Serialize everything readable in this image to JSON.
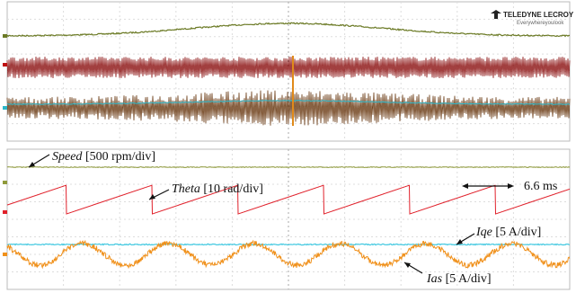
{
  "brand": {
    "name": "TELEDYNE LECROY",
    "tagline": "Everywhereyoulook"
  },
  "annotations": [
    {
      "name": "Speed",
      "scale": "[500 rpm/div]"
    },
    {
      "name": "Theta",
      "scale": "[10 rad/div]"
    },
    {
      "name": "Iqe",
      "scale": "[5 A/div]"
    },
    {
      "name": "Ias",
      "scale": "[5 A/div]"
    }
  ],
  "time_marker": "6.6 ms"
}
